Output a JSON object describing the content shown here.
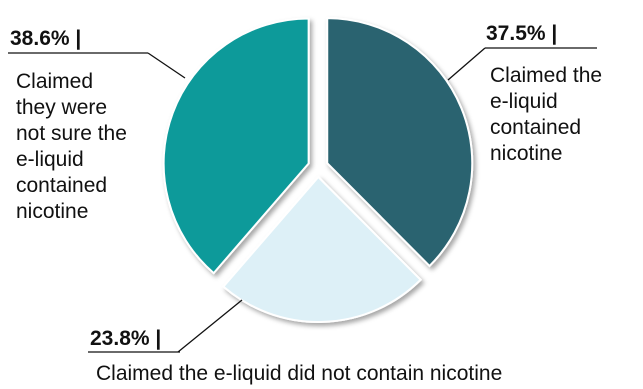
{
  "chart_data": {
    "type": "pie",
    "title": "",
    "legend": "none",
    "slices": [
      {
        "label": "Claimed the e-liquid contained nicotine",
        "value": 37.5,
        "value_label": "37.5% |",
        "label_lines": [
          "Claimed the",
          "e-liquid",
          "contained",
          "nicotine"
        ],
        "color": "#2b6470"
      },
      {
        "label": "Claimed the e-liquid did not contain nicotine",
        "value": 23.8,
        "value_label": "23.8% |",
        "label_lines": [
          "Claimed the e-liquid did not contain nicotine"
        ],
        "color": "#ddf0f7"
      },
      {
        "label": "Claimed they were not sure the e-liquid contained nicotine",
        "value": 38.6,
        "value_label": "38.6% |",
        "label_lines": [
          "Claimed",
          "they were",
          "not sure the",
          "e-liquid",
          "contained",
          "nicotine"
        ],
        "color": "#0e9a9a"
      }
    ]
  }
}
